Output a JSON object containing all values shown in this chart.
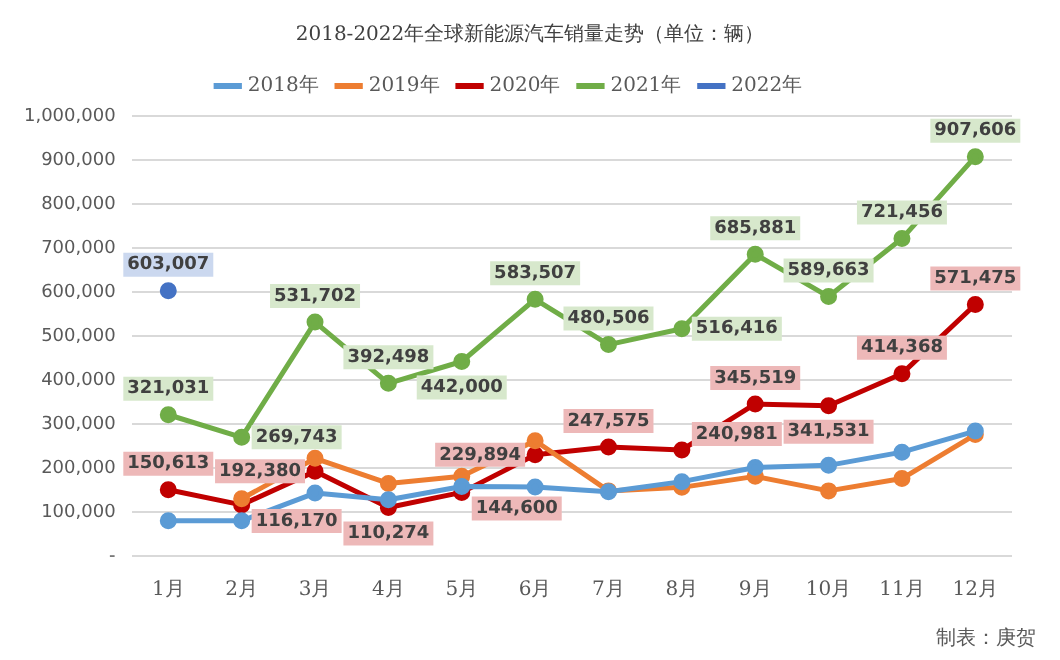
{
  "chart_data": {
    "type": "line",
    "title": "2018-2022年全球新能源汽车销量走势",
    "subtitle": "（单位：辆）",
    "categories": [
      "1月",
      "2月",
      "3月",
      "4月",
      "5月",
      "6月",
      "7月",
      "8月",
      "9月",
      "10月",
      "11月",
      "12月"
    ],
    "series": [
      {
        "name": "2018年",
        "color": "#5b9bd5",
        "values": [
          80000,
          80000,
          143000,
          128000,
          158000,
          157000,
          146000,
          169000,
          201000,
          206000,
          236000,
          284000
        ]
      },
      {
        "name": "2019年",
        "color": "#ed7d31",
        "values": [
          null,
          130000,
          222000,
          165000,
          181000,
          262000,
          148000,
          156000,
          181000,
          148000,
          176000,
          276000
        ]
      },
      {
        "name": "2020年",
        "color": "#c00000",
        "values": [
          150613,
          116170,
          192380,
          110274,
          144600,
          229894,
          247575,
          240981,
          345519,
          341531,
          414368,
          571475
        ],
        "value_labels": [
          "150,613",
          "116,170",
          "192,380",
          "110,274",
          "144,600",
          "229,894",
          "247,575",
          "240,981",
          "345,519",
          "341,531",
          "414,368",
          "571,475"
        ]
      },
      {
        "name": "2021年",
        "color": "#70ad47",
        "values": [
          321031,
          269743,
          531702,
          392498,
          442000,
          583507,
          480506,
          516416,
          685881,
          589663,
          721456,
          907606
        ],
        "value_labels": [
          "321,031",
          "269,743",
          "531,702",
          "392,498",
          "442,000",
          "583,507",
          "480,506",
          "516,416",
          "685,881",
          "589,663",
          "721,456",
          "907,606"
        ]
      },
      {
        "name": "2022年",
        "color": "#4472c4",
        "values": [
          603007,
          null,
          null,
          null,
          null,
          null,
          null,
          null,
          null,
          null,
          null,
          null
        ],
        "value_labels": [
          "603,007",
          null,
          null,
          null,
          null,
          null,
          null,
          null,
          null,
          null,
          null,
          null
        ]
      }
    ],
    "ylim": [
      0,
      1000000
    ],
    "yticks": [
      {
        "value": 0,
        "label": "-"
      },
      {
        "value": 100000,
        "label": "100,000"
      },
      {
        "value": 200000,
        "label": "200,000"
      },
      {
        "value": 300000,
        "label": "300,000"
      },
      {
        "value": 400000,
        "label": "400,000"
      },
      {
        "value": 500000,
        "label": "500,000"
      },
      {
        "value": 600000,
        "label": "600,000"
      },
      {
        "value": 700000,
        "label": "700,000"
      },
      {
        "value": 800000,
        "label": "800,000"
      },
      {
        "value": 900000,
        "label": "900,000"
      },
      {
        "value": 1000000,
        "label": "1,000,000"
      }
    ],
    "grid": "y",
    "legend": "top",
    "marker": "circle",
    "line_style": "solid",
    "annotations": [
      "制表：庚贺"
    ]
  }
}
